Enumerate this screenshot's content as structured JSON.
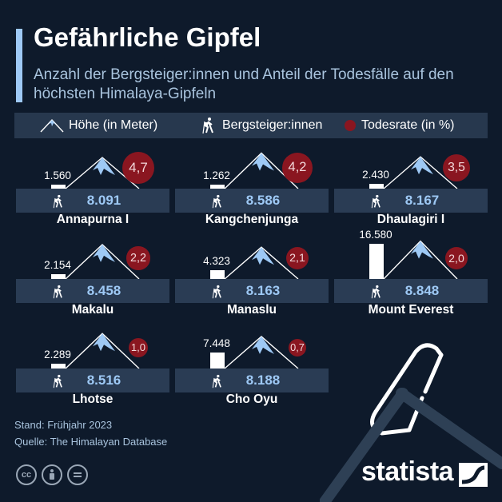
{
  "header": {
    "title": "Gefährliche Gipfel",
    "subtitle": "Anzahl der Bergsteiger:innen und Anteil der Todesfälle auf den höchsten Himalaya-Gipfeln"
  },
  "legend": {
    "height_label": "Höhe (in Meter)",
    "climbers_label": "Bergsteiger:innen",
    "rate_label": "Todesrate (in %)"
  },
  "colors": {
    "background": "#0e1a2b",
    "accent": "#9ec9f5",
    "death_rate": "#8a1620",
    "strip": "#2a3c54"
  },
  "chart_data": {
    "type": "bar",
    "title": "Gefährliche Gipfel",
    "subtitle": "Anzahl der Bergsteiger:innen und Anteil der Todesfälle auf den höchsten Himalaya-Gipfeln",
    "categories": [
      "Annapurna I",
      "Kangchenjunga",
      "Dhaulagiri I",
      "Makalu",
      "Manaslu",
      "Mount Everest",
      "Lhotse",
      "Cho Oyu"
    ],
    "series": [
      {
        "name": "Höhe (in Meter)",
        "values": [
          8091,
          8586,
          8167,
          8458,
          8163,
          8848,
          8516,
          8188
        ]
      },
      {
        "name": "Bergsteiger:innen",
        "values": [
          1560,
          1262,
          2430,
          2154,
          4323,
          16580,
          2289,
          7448
        ]
      },
      {
        "name": "Todesrate (in %)",
        "values": [
          4.7,
          4.2,
          3.5,
          2.2,
          2.1,
          2.0,
          1.0,
          0.7
        ]
      }
    ],
    "peaks": [
      {
        "name": "Annapurna I",
        "height": "8.091",
        "climbers": "1.560",
        "climbers_value": 1560,
        "rate": "4,7",
        "rate_value": 4.7
      },
      {
        "name": "Kangchenjunga",
        "height": "8.586",
        "climbers": "1.262",
        "climbers_value": 1262,
        "rate": "4,2",
        "rate_value": 4.2
      },
      {
        "name": "Dhaulagiri I",
        "height": "8.167",
        "climbers": "2.430",
        "climbers_value": 2430,
        "rate": "3,5",
        "rate_value": 3.5
      },
      {
        "name": "Makalu",
        "height": "8.458",
        "climbers": "2.154",
        "climbers_value": 2154,
        "rate": "2,2",
        "rate_value": 2.2
      },
      {
        "name": "Manaslu",
        "height": "8.163",
        "climbers": "4.323",
        "climbers_value": 4323,
        "rate": "2,1",
        "rate_value": 2.1
      },
      {
        "name": "Mount Everest",
        "height": "8.848",
        "climbers": "16.580",
        "climbers_value": 16580,
        "rate": "2,0",
        "rate_value": 2.0
      },
      {
        "name": "Lhotse",
        "height": "8.516",
        "climbers": "2.289",
        "climbers_value": 2289,
        "rate": "1,0",
        "rate_value": 1.0
      },
      {
        "name": "Cho Oyu",
        "height": "8.188",
        "climbers": "7.448",
        "climbers_value": 7448,
        "rate": "0,7",
        "rate_value": 0.7
      }
    ]
  },
  "footer": {
    "stand": "Stand: Frühjahr 2023",
    "source": "Quelle: The Himalayan Database",
    "brand": "statista"
  }
}
